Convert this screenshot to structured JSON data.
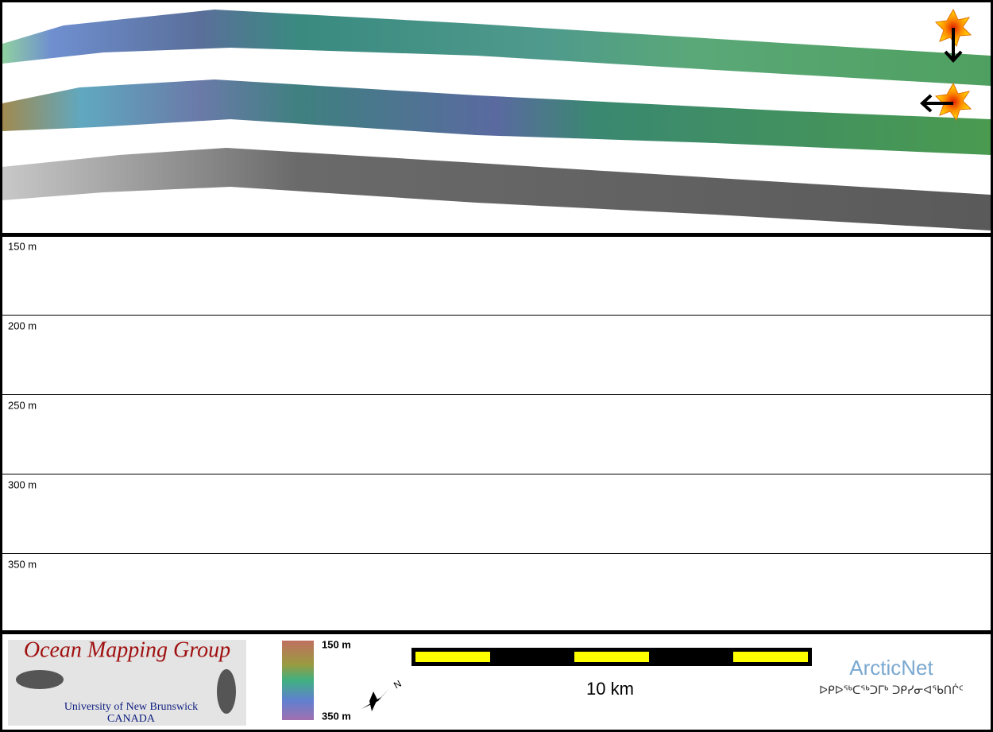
{
  "depth_profile": {
    "labels": [
      "150 m",
      "200 m",
      "250 m",
      "300 m",
      "350 m"
    ]
  },
  "legend": {
    "top": "150 m",
    "bottom": "350 m",
    "north": "N"
  },
  "scale_bar": {
    "label": "10 km"
  },
  "logos": {
    "omg_title": "Ocean Mapping Group",
    "omg_university": "University of New Brunswick",
    "omg_country": "CANADA",
    "arcticnet": "ArcticNet",
    "arcticnet_inuktitut": "ᐅᑭᐅᖅᑕᖅᑐᒥᒃ ᑐᑭᓯᓂᐊᖃᑎᒌᑦ"
  }
}
